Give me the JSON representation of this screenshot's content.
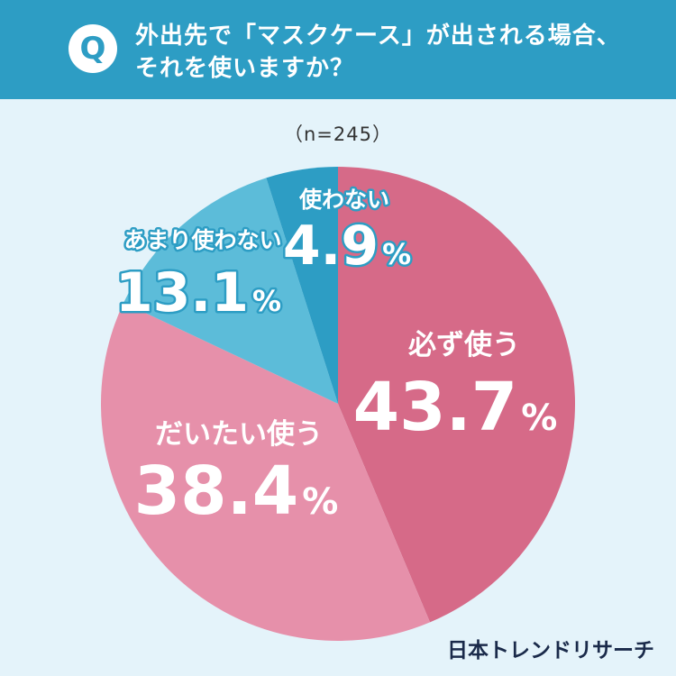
{
  "header": {
    "badge": "Q",
    "question_line1": "外出先で「マスクケース」が出される場合、",
    "question_line2": "それを使いますか？"
  },
  "sample_size": "（n=245）",
  "brand": "日本トレンドリサーチ",
  "colors": {
    "header_bg": "#2d9dc4",
    "background": "#e4f3fa",
    "always": "#d66a88",
    "mostly": "#e690aa",
    "rarely": "#5cbcd9",
    "never": "#2d9dc4"
  },
  "chart_data": {
    "type": "pie",
    "unit": "%",
    "slices": [
      {
        "label": "必ず使う",
        "value": 43.7,
        "display": "43.7",
        "color": "#d66a88"
      },
      {
        "label": "だいたい使う",
        "value": 38.4,
        "display": "38.4",
        "color": "#e690aa"
      },
      {
        "label": "あまり使わない",
        "value": 13.1,
        "display": "13.1",
        "color": "#5cbcd9"
      },
      {
        "label": "使わない",
        "value": 4.9,
        "display": "4.9",
        "color": "#2d9dc4"
      }
    ]
  }
}
